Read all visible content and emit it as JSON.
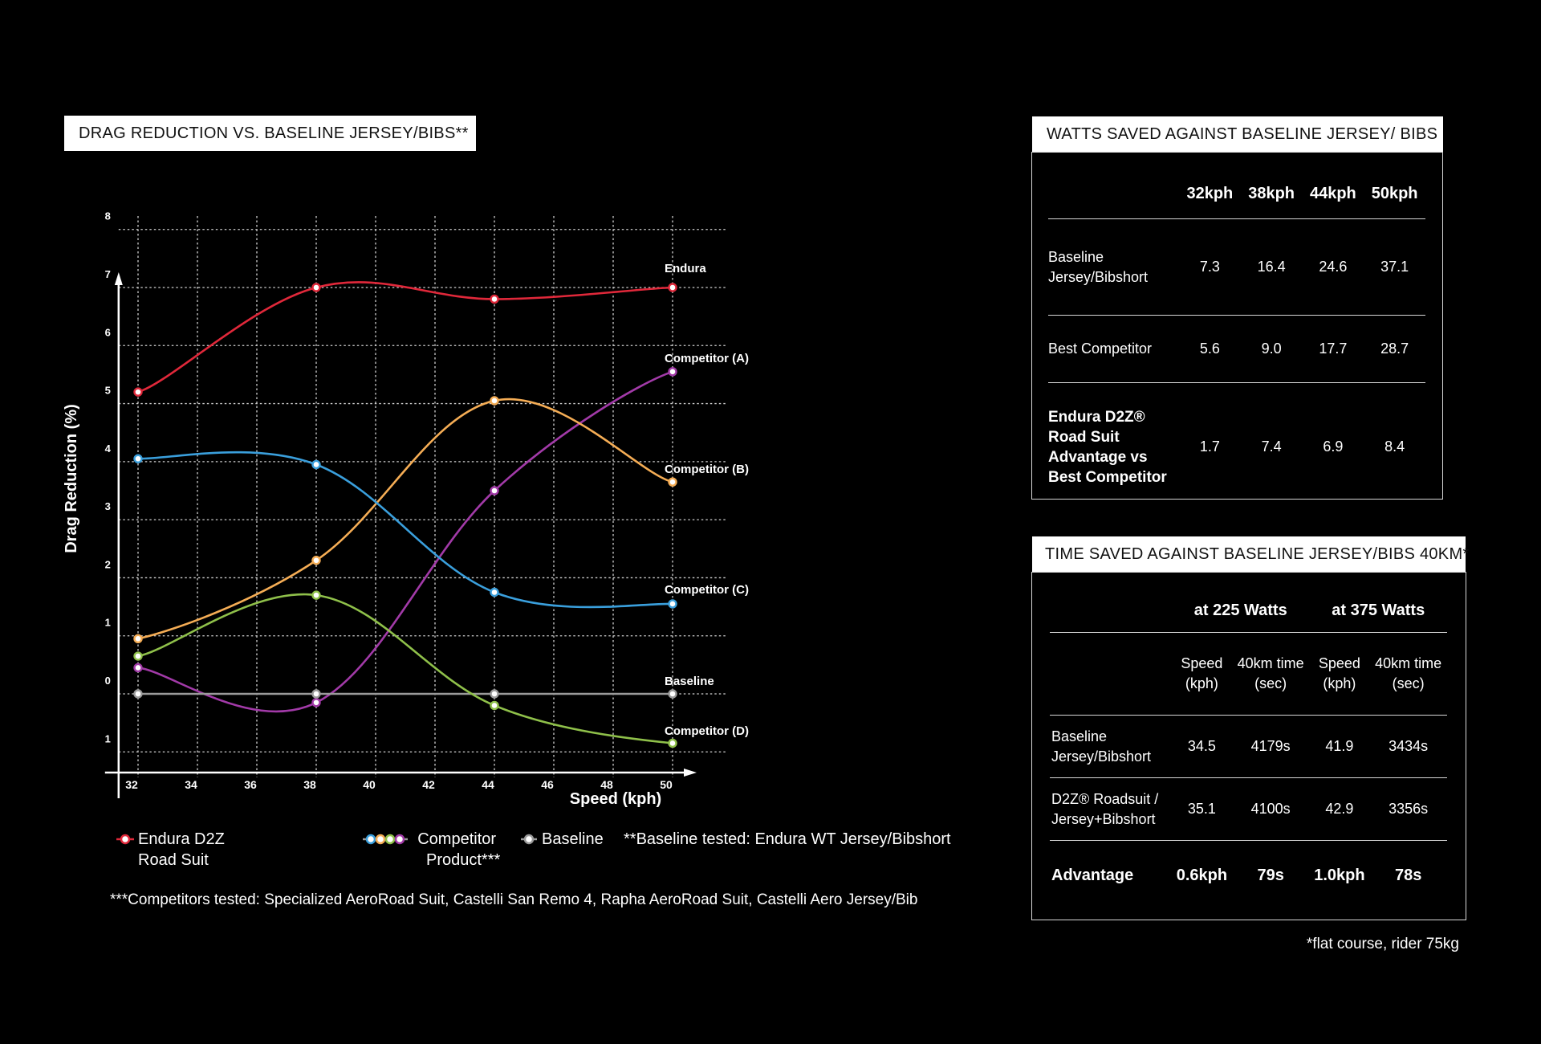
{
  "chart_data": {
    "type": "line",
    "title": "DRAG REDUCTION VS. BASELINE JERSEY/BIBS**",
    "xlabel": "Speed (kph)",
    "ylabel": "Drag Reduction (%)",
    "xlim": [
      31.4,
      52
    ],
    "ylim": [
      -1.3,
      8.3
    ],
    "x_ticks": [
      32,
      34,
      36,
      38,
      40,
      42,
      44,
      46,
      48,
      50
    ],
    "y_ticks": [
      8,
      7,
      6,
      5,
      4,
      3,
      2,
      1,
      0,
      -1
    ],
    "y_tick_labels": [
      "8",
      "7",
      "6",
      "5",
      "4",
      "3",
      "2",
      "1",
      "0",
      "1"
    ],
    "grid": true,
    "x": [
      32,
      38,
      44,
      50
    ],
    "series": [
      {
        "name": "Endura",
        "color": "#e0283a",
        "values": [
          5.2,
          7.0,
          6.8,
          7.0
        ]
      },
      {
        "name": "Competitor (A)",
        "color": "#a23aa8",
        "values": [
          0.45,
          -0.15,
          3.5,
          5.55
        ]
      },
      {
        "name": "Competitor (B)",
        "color": "#f5ad55",
        "values": [
          0.95,
          2.3,
          5.05,
          3.65
        ]
      },
      {
        "name": "Competitor (C)",
        "color": "#3a9fdc",
        "values": [
          4.05,
          3.95,
          1.75,
          1.55
        ]
      },
      {
        "name": "Baseline",
        "color": "#9a9a9a",
        "values": [
          0,
          0,
          0,
          0
        ]
      },
      {
        "name": "Competitor (D)",
        "color": "#8fc04a",
        "values": [
          0.65,
          1.7,
          -0.2,
          -0.85
        ]
      }
    ]
  },
  "legend": {
    "endura_line1": "Endura D2Z",
    "endura_line2": "Road Suit",
    "competitor_line1": "Competitor",
    "competitor_line2": "Product***",
    "baseline": "Baseline",
    "baseline_note": "**Baseline tested: Endura WT Jersey/Bibshort"
  },
  "competitors_note": "***Competitors tested: Specialized AeroRoad Suit, Castelli San Remo 4, Rapha  AeroRoad Suit, Castelli Aero Jersey/Bib",
  "watts_table": {
    "title": "WATTS SAVED AGAINST BASELINE JERSEY/ BIBS",
    "headers": [
      "32kph",
      "38kph",
      "44kph",
      "50kph"
    ],
    "rows": [
      {
        "label_lines": [
          "Baseline",
          "Jersey/Bibshort"
        ],
        "values": [
          "7.3",
          "16.4",
          "24.6",
          "37.1"
        ]
      },
      {
        "label_lines": [
          "Best Competitor"
        ],
        "values": [
          "5.6",
          "9.0",
          "17.7",
          "28.7"
        ]
      },
      {
        "label_lines": [
          "Endura D2Z®",
          "Road Suit",
          "Advantage vs",
          "Best Competitor"
        ],
        "values": [
          "1.7",
          "7.4",
          "6.9",
          "8.4"
        ]
      }
    ]
  },
  "time_table": {
    "title": "TIME SAVED AGAINST BASELINE JERSEY/BIBS 40KM*",
    "group_headers": [
      "at 225 Watts",
      "at 375 Watts"
    ],
    "sub_headers": [
      [
        "Speed",
        "(kph)"
      ],
      [
        "40km time",
        "(sec)"
      ],
      [
        "Speed",
        "(kph)"
      ],
      [
        "40km time",
        "(sec)"
      ]
    ],
    "rows": [
      {
        "label_lines": [
          "Baseline",
          "Jersey/Bibshort"
        ],
        "values": [
          "34.5",
          "4179s",
          "41.9",
          "3434s"
        ]
      },
      {
        "label_lines": [
          "D2Z® Roadsuit /",
          "Jersey+Bibshort"
        ],
        "values": [
          "35.1",
          "4100s",
          "42.9",
          "3356s"
        ]
      }
    ],
    "advantage": {
      "label": "Advantage",
      "values": [
        "0.6kph",
        "79s",
        "1.0kph",
        "78s"
      ]
    },
    "footnote": "*flat course, rider 75kg"
  }
}
